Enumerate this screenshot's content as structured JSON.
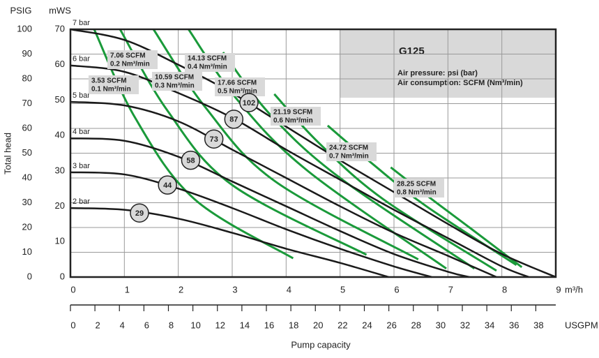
{
  "chart_data": {
    "type": "line",
    "title": "G125",
    "annotations": [
      "Air pressure: psi (bar)",
      "Air consumption: SCFM (Nm³/min)"
    ],
    "ylabel": "Total head",
    "y_unit": "mWS",
    "y2_unit": "PSIG",
    "x_unit": "m³/h",
    "x2_unit": "USGPM",
    "xlabel": "Pump capacity",
    "xlim": [
      0,
      9
    ],
    "xticks": [
      0,
      1,
      2,
      3,
      4,
      5,
      6,
      7,
      8,
      9
    ],
    "x2lim": [
      0,
      39.63
    ],
    "x2ticks": [
      0,
      2,
      4,
      6,
      8,
      10,
      12,
      14,
      16,
      18,
      20,
      22,
      24,
      26,
      28,
      30,
      32,
      34,
      36,
      38
    ],
    "ylim": [
      0,
      70
    ],
    "yticks": [
      0,
      10,
      20,
      30,
      40,
      50,
      60,
      70
    ],
    "y2lim": [
      0,
      100
    ],
    "y2ticks": [
      0,
      10,
      20,
      30,
      40,
      50,
      60,
      70,
      80,
      90,
      100
    ],
    "grid": true,
    "series": [
      {
        "name": "2 bar",
        "color": "#1a1a1a",
        "x": [
          0,
          1,
          2,
          3,
          4,
          5,
          5.9
        ],
        "values": [
          19.5,
          19,
          16.5,
          12.5,
          8,
          4,
          0
        ]
      },
      {
        "name": "3 bar",
        "color": "#1a1a1a",
        "x": [
          0,
          1,
          2,
          3,
          4,
          5,
          6,
          6.7
        ],
        "values": [
          29.6,
          29,
          25,
          19.5,
          13.5,
          8,
          3,
          0
        ]
      },
      {
        "name": "4 bar",
        "color": "#1a1a1a",
        "x": [
          0,
          1,
          2,
          3,
          4,
          5,
          6,
          7,
          7.4
        ],
        "values": [
          39.2,
          38.5,
          34,
          27,
          20,
          13,
          6.5,
          1.5,
          0
        ]
      },
      {
        "name": "5 bar",
        "color": "#1a1a1a",
        "x": [
          0,
          1,
          2,
          3,
          4,
          5,
          6,
          7,
          7.9
        ],
        "values": [
          49.5,
          48.5,
          44,
          36,
          28,
          20,
          12.5,
          6,
          0
        ]
      },
      {
        "name": "6 bar",
        "color": "#1a1a1a",
        "x": [
          0,
          1,
          2,
          3,
          4,
          5,
          6,
          7,
          8,
          8.5
        ],
        "values": [
          59.8,
          58,
          52,
          45,
          36,
          27.5,
          19,
          11,
          3,
          0
        ]
      },
      {
        "name": "7 bar",
        "color": "#1a1a1a",
        "x": [
          0,
          1,
          2,
          3,
          4,
          5,
          6,
          7,
          8,
          9
        ],
        "values": [
          70,
          67,
          60,
          52,
          42.5,
          33,
          24,
          15,
          6.5,
          0
        ]
      }
    ],
    "air_series": [
      {
        "name": "3.53 SCFM",
        "metric": "0.1 Nm³/min",
        "color": "#1a9a3a",
        "x": [
          0.44,
          1.2,
          2.3,
          4.13
        ],
        "values": [
          70,
          45,
          22,
          5.3
        ]
      },
      {
        "name": "7.06 SCFM",
        "metric": "0.2 Nm³/min",
        "color": "#1a9a3a",
        "x": [
          0.92,
          1.8,
          3,
          5.49
        ],
        "values": [
          70,
          47,
          26,
          6.3
        ]
      },
      {
        "name": "10.59 SCFM",
        "metric": "0.3 Nm³/min",
        "color": "#1a9a3a",
        "x": [
          1.54,
          2.5,
          3.8,
          6.45
        ],
        "values": [
          70,
          48,
          27,
          5
        ]
      },
      {
        "name": "14.13 SCFM",
        "metric": "0.4 Nm³/min",
        "color": "#1a9a3a",
        "x": [
          2.19,
          3.1,
          4.4,
          6.97
        ],
        "values": [
          70,
          50,
          30,
          2.4
        ]
      },
      {
        "name": "17.66 SCFM",
        "metric": "0.5 Nm³/min",
        "color": "#1a9a3a",
        "x": [
          2.83,
          3.7,
          5,
          7.49
        ],
        "values": [
          63.5,
          46,
          28,
          2.4
        ]
      },
      {
        "name": "21.19 SCFM",
        "metric": "0.6 Nm³/min",
        "color": "#1a9a3a",
        "x": [
          3.78,
          4.6,
          5.8,
          7.9
        ],
        "values": [
          51.7,
          38,
          22,
          1.8
        ]
      },
      {
        "name": "24.72 SCFM",
        "metric": "0.7 Nm³/min",
        "color": "#1a9a3a",
        "x": [
          4.77,
          5.6,
          6.6,
          8.27
        ],
        "values": [
          42.8,
          32,
          20,
          3.4
        ]
      },
      {
        "name": "28.25 SCFM",
        "metric": "0.8 Nm³/min",
        "color": "#1a9a3a",
        "x": [
          5.94,
          6.7,
          7.4,
          8.37
        ],
        "values": [
          31,
          22,
          14,
          2.8
        ]
      }
    ],
    "speed_markers": [
      {
        "label": 29,
        "x": 1.28,
        "y": 18.1
      },
      {
        "label": 44,
        "x": 1.8,
        "y": 26
      },
      {
        "label": 58,
        "x": 2.23,
        "y": 33
      },
      {
        "label": 73,
        "x": 2.66,
        "y": 39
      },
      {
        "label": 87,
        "x": 3.03,
        "y": 44.6
      },
      {
        "label": 102,
        "x": 3.31,
        "y": 49.3
      }
    ]
  }
}
